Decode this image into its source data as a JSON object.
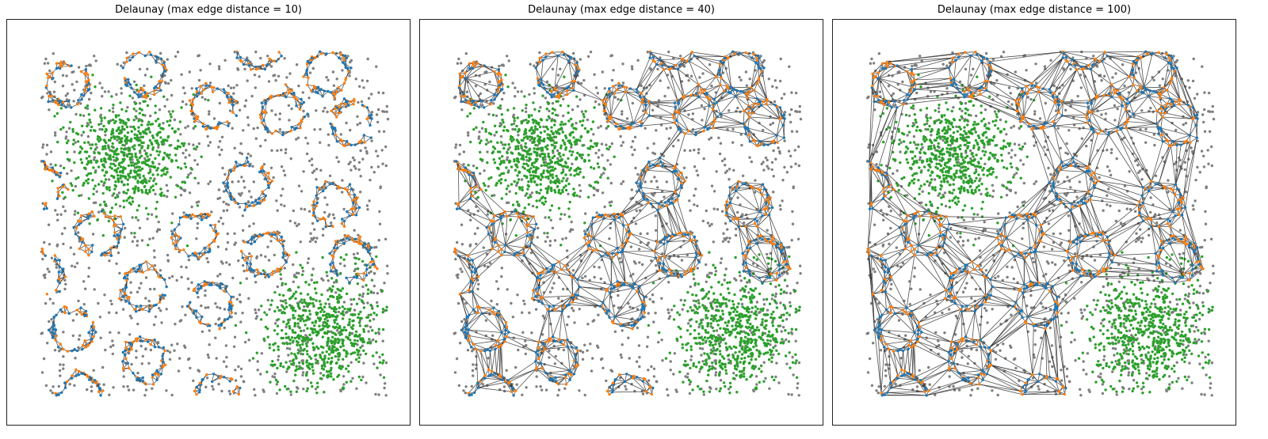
{
  "chart_data": [
    {
      "type": "scatter",
      "title": "Delaunay (max edge distance = 10)",
      "max_edge_distance": 10
    },
    {
      "type": "scatter",
      "title": "Delaunay (max edge distance = 40)",
      "max_edge_distance": 40
    },
    {
      "type": "scatter",
      "title": "Delaunay (max edge distance = 100)",
      "max_edge_distance": 100
    }
  ],
  "shared": {
    "xlim": [
      -39,
      425
    ],
    "ylim": [
      -34,
      437
    ],
    "grid": false,
    "ticks": false,
    "ring_radius": 24,
    "ring_centers": [
      [
        31,
        362
      ],
      [
        119,
        376
      ],
      [
        249,
        403
      ],
      [
        330,
        376
      ],
      [
        198,
        335
      ],
      [
        278,
        328
      ],
      [
        359,
        317
      ],
      [
        0,
        244
      ],
      [
        238,
        246
      ],
      [
        338,
        222
      ],
      [
        67,
        188
      ],
      [
        178,
        187
      ],
      [
        259,
        164
      ],
      [
        358,
        158
      ],
      [
        0,
        142
      ],
      [
        119,
        124
      ],
      [
        197,
        106
      ],
      [
        36,
        76
      ],
      [
        119,
        41
      ],
      [
        45,
        0
      ],
      [
        204,
        0
      ]
    ],
    "blobs": [
      {
        "center": [
          98,
          280
        ],
        "sd": 35
      },
      {
        "center": [
          326,
          74
        ],
        "sd": 35
      }
    ],
    "colors": {
      "class_a": "#1f77b4",
      "class_b": "#ff7f0e",
      "blob": "#2ca02c",
      "noise": "#7f7f7f",
      "edge": "#333333"
    }
  }
}
